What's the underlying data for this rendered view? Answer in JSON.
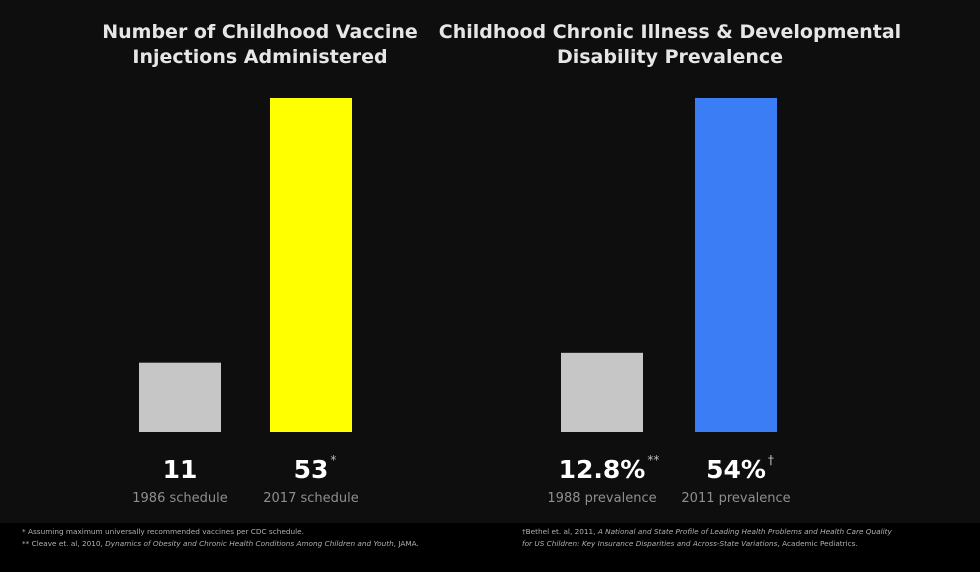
{
  "chart_data": [
    {
      "type": "bar",
      "title_lines": [
        "Number of Childhood Vaccine",
        "Injections Administered"
      ],
      "categories": [
        "1986 schedule",
        "2017 schedule"
      ],
      "values": [
        11,
        53
      ],
      "value_labels": [
        "11",
        "53"
      ],
      "value_marks": [
        "",
        "*"
      ],
      "colors": [
        "#c6c6c6",
        "#ffff00"
      ],
      "ylim": [
        0,
        53
      ]
    },
    {
      "type": "bar",
      "title_lines": [
        "Childhood Chronic Illness & Developmental",
        "Disability Prevalence"
      ],
      "categories": [
        "1988 prevalence",
        "2011 prevalence"
      ],
      "values": [
        12.8,
        54
      ],
      "value_labels": [
        "12.8%",
        "54%"
      ],
      "value_marks": [
        "**",
        "†"
      ],
      "colors": [
        "#c6c6c6",
        "#3a7df5"
      ],
      "ylim": [
        0,
        54
      ]
    }
  ],
  "footnotes": {
    "left": [
      {
        "plain": "* Assuming maximum universally recommended vaccines per CDC schedule."
      },
      {
        "pre": "** Cleave et. al, 2010, ",
        "ital": "Dynamics of Obesity and Chronic Health Conditions Among Children and Youth",
        "post": ", JAMA."
      }
    ],
    "right": [
      {
        "pre": "†Bethel et. al, 2011, ",
        "ital": "A National and State Profile of Leading Health Problems and Health Care Quality",
        "post": ""
      },
      {
        "pre": "",
        "ital": "for US Children: Key Insurance Disparities and Across-State Variations",
        "post": ", Academic Pediatrics."
      }
    ]
  }
}
